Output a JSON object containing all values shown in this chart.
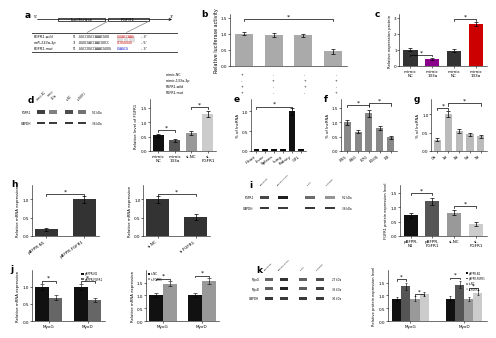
{
  "panel_b": {
    "bars": [
      1.0,
      0.95,
      0.95,
      0.45
    ],
    "errors": [
      0.05,
      0.06,
      0.05,
      0.08
    ],
    "color": "#aaaaaa",
    "ylabel": "Relative luciferase activity",
    "ylim": [
      0,
      1.6
    ],
    "yticks": [
      0,
      0.5,
      1.0,
      1.5
    ],
    "row_labels": [
      "mimic-NC",
      "mimic-133a-3p",
      "FGFR1-wild",
      "FGFR1-mut"
    ],
    "row_vals": [
      [
        "+",
        "-",
        "-",
        "-"
      ],
      [
        "-",
        "+",
        "+",
        "+"
      ],
      [
        "+",
        "-",
        "+",
        "-"
      ],
      [
        "+",
        "-",
        "-",
        "+"
      ]
    ]
  },
  "panel_c": {
    "bars": [
      1.0,
      0.45,
      0.95,
      2.6
    ],
    "errors": [
      0.08,
      0.06,
      0.07,
      0.15
    ],
    "colors": [
      "#333333",
      "#8B008B",
      "#333333",
      "#CC0000"
    ],
    "ylabel": "Relative expression protein",
    "ylim": [
      0,
      3.2
    ],
    "yticks": [
      0,
      1,
      2,
      3
    ]
  },
  "panel_d_bar": {
    "bars": [
      0.55,
      0.38,
      0.62,
      1.3
    ],
    "errors": [
      0.06,
      0.05,
      0.07,
      0.1
    ],
    "colors": [
      "#111111",
      "#555555",
      "#999999",
      "#cccccc"
    ],
    "ylabel": "Relative level of FGFR1",
    "ylim": [
      0,
      1.8
    ],
    "yticks": [
      0.0,
      0.5,
      1.0,
      1.5
    ],
    "xlabels": [
      "mimic-NC",
      "mimic-133a",
      "si-NC",
      "si-FGFR1"
    ]
  },
  "panel_e": {
    "bars": [
      0.05,
      0.04,
      0.04,
      0.04,
      1.0,
      0.05
    ],
    "errors": [
      0.01,
      0.01,
      0.01,
      0.01,
      0.08,
      0.01
    ],
    "color": "#111111",
    "xlabels": [
      "Heart",
      "Liver",
      "Spleen",
      "Lung",
      "Kidney",
      "GTL"
    ],
    "ylabel": "% of lncRNA",
    "ylim": [
      0,
      1.3
    ],
    "yticks": [
      0,
      0.5,
      1.0
    ]
  },
  "panel_f": {
    "bars": [
      1.0,
      0.68,
      1.32,
      0.82,
      0.48
    ],
    "errors": [
      0.08,
      0.06,
      0.12,
      0.07,
      0.05
    ],
    "color": "#888888",
    "xlabels": [
      "E55",
      "E60",
      "E70",
      "E105",
      "E0"
    ],
    "ylabel": "% of lncRNA",
    "ylim": [
      0,
      1.8
    ],
    "yticks": [
      0,
      0.5,
      1.0,
      1.5
    ]
  },
  "panel_g": {
    "bars": [
      0.3,
      1.0,
      0.55,
      0.45,
      0.4
    ],
    "errors": [
      0.04,
      0.08,
      0.06,
      0.05,
      0.04
    ],
    "color": "#bbbbbb",
    "xlabels": [
      "0h",
      "1d",
      "3d",
      "5d",
      "7d"
    ],
    "ylabel": "% of lncRNA",
    "ylim": [
      0,
      1.4
    ],
    "yticks": [
      0,
      0.5,
      1.0
    ]
  },
  "panel_h_left": {
    "bars": [
      0.18,
      1.0
    ],
    "errors": [
      0.03,
      0.1
    ],
    "color": "#333333",
    "xlabels": [
      "pBFPR-N1",
      "pBFPR-FGFR1"
    ],
    "ylabel": "Relative mRNA expression",
    "ylim": [
      0,
      1.4
    ],
    "yticks": [
      0,
      0.5,
      1.0
    ]
  },
  "panel_h_right": {
    "bars": [
      1.0,
      0.52
    ],
    "errors": [
      0.1,
      0.07
    ],
    "color": "#333333",
    "xlabels": [
      "si-NC",
      "si-FGFR1"
    ],
    "ylabel": "Relative mRNA expression",
    "ylim": [
      0,
      1.4
    ],
    "yticks": [
      0,
      0.5,
      1.0
    ]
  },
  "panel_i_bar": {
    "bars": [
      0.72,
      1.22,
      0.82,
      0.42
    ],
    "errors": [
      0.08,
      0.12,
      0.09,
      0.06
    ],
    "colors": [
      "#111111",
      "#555555",
      "#999999",
      "#cccccc"
    ],
    "xlabels": [
      "pBFPR-N1",
      "pBFPR-FGFR1",
      "si-NC",
      "si-FGFR1"
    ],
    "ylabel": "FGFR1 protein expression level",
    "ylim": [
      0,
      1.8
    ],
    "yticks": [
      0.0,
      0.5,
      1.0,
      1.5
    ]
  },
  "panel_j_left": {
    "groups": [
      "MyoG",
      "MyoD"
    ],
    "series1": [
      1.0,
      1.0
    ],
    "series2": [
      0.68,
      0.62
    ],
    "errors1": [
      0.08,
      0.08
    ],
    "errors2": [
      0.07,
      0.06
    ],
    "legend": [
      "pBFPR-N1",
      "pBFPR-FGFR1"
    ],
    "colors": [
      "#111111",
      "#666666"
    ],
    "ylabel": "Relative mRNA expression",
    "ylim": [
      0,
      1.5
    ],
    "yticks": [
      0,
      0.5,
      1.0
    ]
  },
  "panel_j_right": {
    "groups": [
      "MyoG",
      "MyoD"
    ],
    "series1": [
      1.0,
      1.0
    ],
    "series2": [
      1.45,
      1.55
    ],
    "errors1": [
      0.08,
      0.08
    ],
    "errors2": [
      0.1,
      0.12
    ],
    "legend": [
      "si-NC",
      "si-FGFR1"
    ],
    "colors": [
      "#111111",
      "#999999"
    ],
    "ylabel": "Relative mRNA expression",
    "ylim": [
      0,
      2.0
    ],
    "yticks": [
      0,
      0.5,
      1.0,
      1.5
    ]
  },
  "panel_k_bar": {
    "groups": [
      "MyoG",
      "MyoD"
    ],
    "series": [
      [
        0.85,
        1.35,
        0.88,
        1.05
      ],
      [
        0.88,
        1.42,
        0.85,
        1.1
      ]
    ],
    "errors": [
      [
        0.07,
        0.12,
        0.08,
        0.09
      ],
      [
        0.08,
        0.13,
        0.08,
        0.1
      ]
    ],
    "legend": [
      "pBFPR-N1",
      "pBFPR-FGFR1",
      "si-NC",
      "si-FGFR1"
    ],
    "colors": [
      "#111111",
      "#555555",
      "#999999",
      "#cccccc"
    ],
    "ylabel": "Relative protein expression level",
    "ylim": [
      0,
      2.0
    ],
    "yticks": [
      0,
      0.5,
      1.0,
      1.5
    ]
  },
  "bg_color": "#ffffff"
}
